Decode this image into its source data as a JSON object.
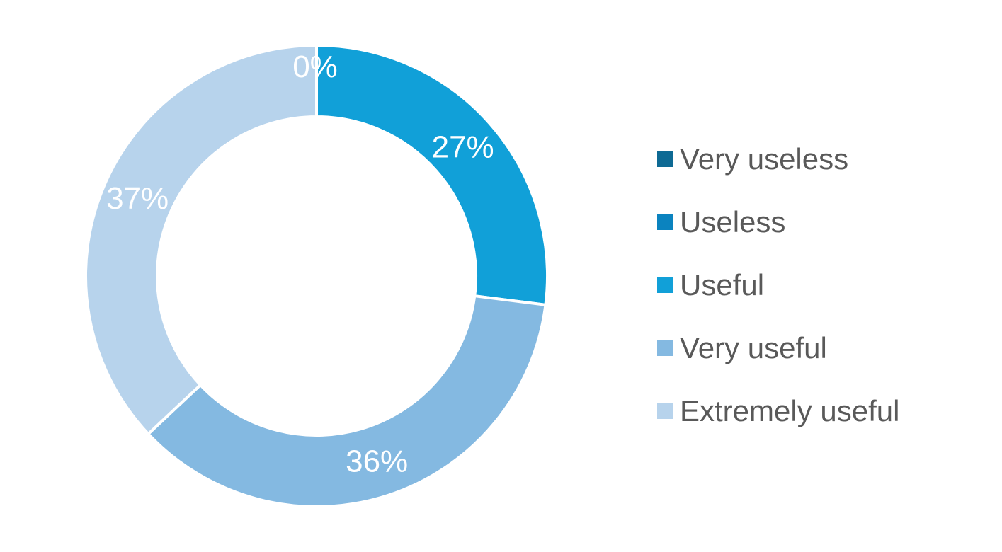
{
  "chart_data": {
    "type": "pie",
    "donut": true,
    "categories": [
      "Very useless",
      "Useless",
      "Useful",
      "Very useful",
      "Extremely useful"
    ],
    "values": [
      0,
      0,
      27,
      36,
      37
    ],
    "data_labels": [
      "0%",
      "0%",
      "27%",
      "36%",
      "37%"
    ],
    "colors": [
      "#0e6a94",
      "#0b83bf",
      "#11a0d8",
      "#84b9e1",
      "#b7d3ec"
    ],
    "unit": "%",
    "legend_position": "right"
  }
}
